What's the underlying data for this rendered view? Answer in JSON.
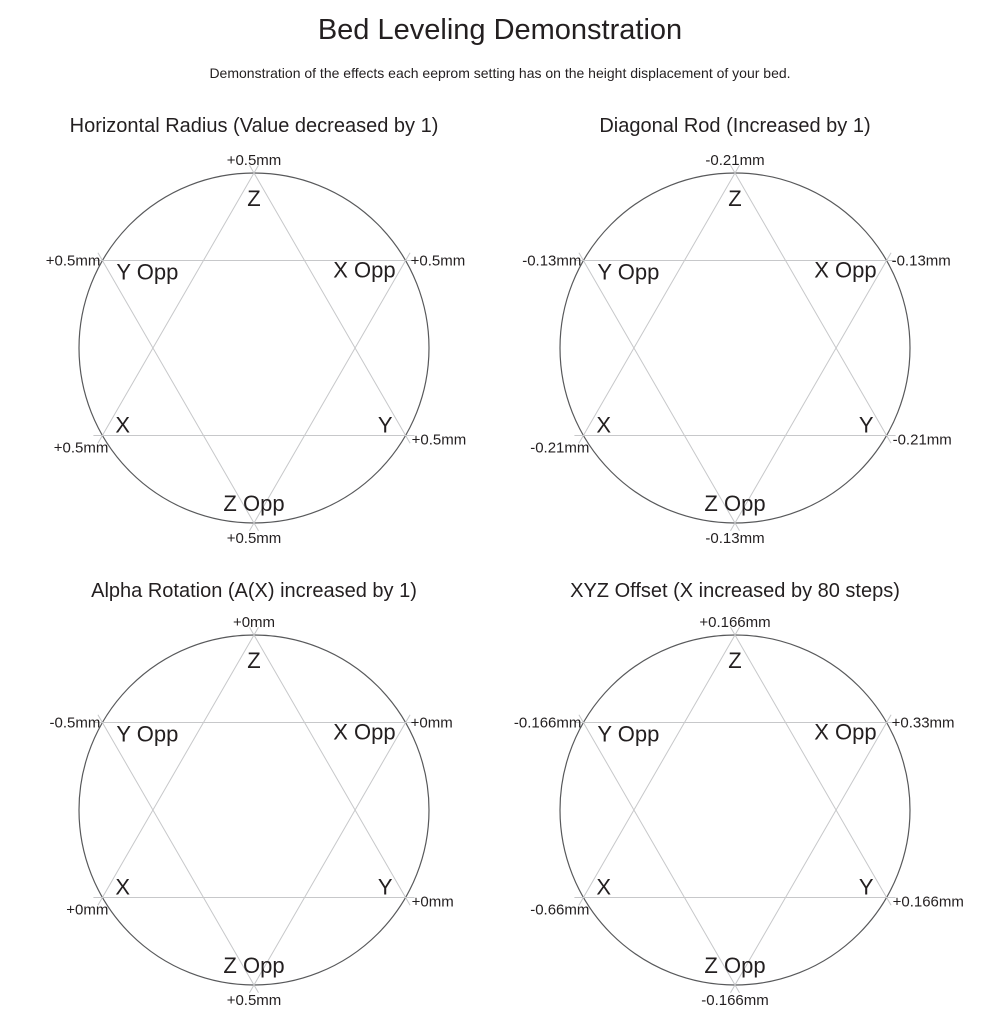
{
  "header": {
    "title": "Bed Leveling Demonstration",
    "subtitle": "Demonstration of the effects each eeprom setting has on the height displacement of your bed."
  },
  "colors": {
    "background": "#ffffff",
    "text": "#231f20",
    "circle_stroke": "#58595b",
    "star_stroke": "#c7c8ca"
  },
  "chart_data": [
    {
      "type": "delta-bed-displacement-diagram",
      "id": "horizontal-radius",
      "title": "Horizontal Radius (Value decreased by 1)",
      "points": [
        {
          "position": "top",
          "tower": "Z",
          "value": "+0.5mm"
        },
        {
          "position": "upper-right",
          "tower": "X Opp",
          "value": "+0.5mm"
        },
        {
          "position": "lower-right",
          "tower": "Y",
          "value": "+0.5mm"
        },
        {
          "position": "bottom",
          "tower": "Z Opp",
          "value": "+0.5mm"
        },
        {
          "position": "lower-left",
          "tower": "X",
          "value": "+0.5mm"
        },
        {
          "position": "upper-left",
          "tower": "Y Opp",
          "value": "+0.5mm"
        }
      ]
    },
    {
      "type": "delta-bed-displacement-diagram",
      "id": "diagonal-rod",
      "title": "Diagonal Rod (Increased by 1)",
      "points": [
        {
          "position": "top",
          "tower": "Z",
          "value": "-0.21mm"
        },
        {
          "position": "upper-right",
          "tower": "X Opp",
          "value": "-0.13mm"
        },
        {
          "position": "lower-right",
          "tower": "Y",
          "value": "-0.21mm"
        },
        {
          "position": "bottom",
          "tower": "Z Opp",
          "value": "-0.13mm"
        },
        {
          "position": "lower-left",
          "tower": "X",
          "value": "-0.21mm"
        },
        {
          "position": "upper-left",
          "tower": "Y Opp",
          "value": "-0.13mm"
        }
      ]
    },
    {
      "type": "delta-bed-displacement-diagram",
      "id": "alpha-rotation",
      "title": "Alpha Rotation (A(X) increased by 1)",
      "points": [
        {
          "position": "top",
          "tower": "Z",
          "value": "+0mm"
        },
        {
          "position": "upper-right",
          "tower": "X Opp",
          "value": "+0mm"
        },
        {
          "position": "lower-right",
          "tower": "Y",
          "value": "+0mm"
        },
        {
          "position": "bottom",
          "tower": "Z Opp",
          "value": "+0.5mm"
        },
        {
          "position": "lower-left",
          "tower": "X",
          "value": "+0mm"
        },
        {
          "position": "upper-left",
          "tower": "Y Opp",
          "value": "-0.5mm"
        }
      ]
    },
    {
      "type": "delta-bed-displacement-diagram",
      "id": "xyz-offset",
      "title": "XYZ Offset (X increased by 80 steps)",
      "points": [
        {
          "position": "top",
          "tower": "Z",
          "value": "+0.166mm"
        },
        {
          "position": "upper-right",
          "tower": "X Opp",
          "value": "+0.33mm"
        },
        {
          "position": "lower-right",
          "tower": "Y",
          "value": "+0.166mm"
        },
        {
          "position": "bottom",
          "tower": "Z Opp",
          "value": "-0.166mm"
        },
        {
          "position": "lower-left",
          "tower": "X",
          "value": "-0.66mm"
        },
        {
          "position": "upper-left",
          "tower": "Y Opp",
          "value": "-0.166mm"
        }
      ]
    }
  ]
}
